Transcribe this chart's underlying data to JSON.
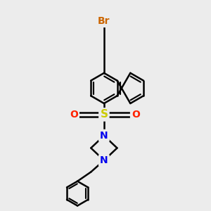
{
  "bg_color": "#ececec",
  "bond_color": "#000000",
  "bond_width": 1.8,
  "br_color": "#cc6600",
  "sulfur_color": "#cccc00",
  "oxygen_color": "#ff2200",
  "nitrogen_color": "#0000ee",
  "font_size": 10,
  "figsize": [
    3.0,
    3.0
  ],
  "dpi": 100,
  "xlim": [
    0,
    10
  ],
  "ylim": [
    0,
    10
  ]
}
